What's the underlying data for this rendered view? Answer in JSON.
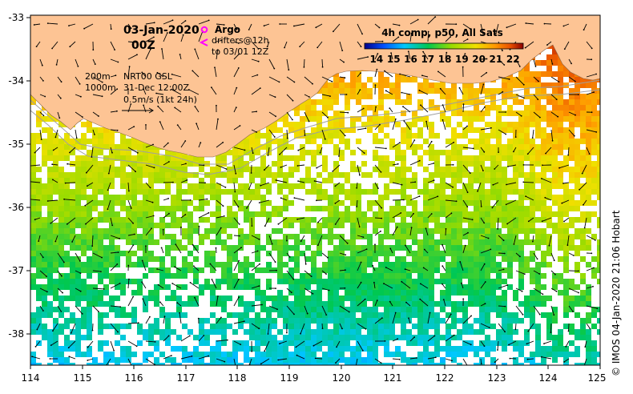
{
  "title": {
    "date": "03-Jan-2020",
    "time": "00Z"
  },
  "legend": {
    "argo_label": "Argo",
    "drifters_label": "drifters@12h",
    "drifters_to": "to 03/01 12Z",
    "argo_color": "#ff00ff"
  },
  "info": {
    "contour_200": "200m",
    "contour_1000": "1000m",
    "altimetry": "NRT00 GSL",
    "altimetry_date": "31-Dec 12:00Z",
    "current_scale": "0.5m/s (1kt 24h)"
  },
  "colorbar": {
    "title": "4h comp, p50, All Sats",
    "ticks": [
      "14",
      "15",
      "16",
      "17",
      "18",
      "19",
      "20",
      "21",
      "22"
    ],
    "min": 13.3,
    "max": 22.6
  },
  "axes": {
    "lon_ticks": [
      "114",
      "115",
      "116",
      "117",
      "118",
      "119",
      "120",
      "121",
      "122",
      "123",
      "124",
      "125"
    ],
    "lat_ticks": [
      "-33",
      "-34",
      "-35",
      "-36",
      "-37",
      "-38"
    ],
    "lon_range": [
      114,
      125
    ],
    "lat_range": [
      -38.5,
      -33
    ]
  },
  "credit": "© IMOS 04-Jan-2020 21:06 Hobart",
  "colors": {
    "land": "#fdc494",
    "ocean": "#ffffff",
    "contour": "#a0a0a0"
  }
}
